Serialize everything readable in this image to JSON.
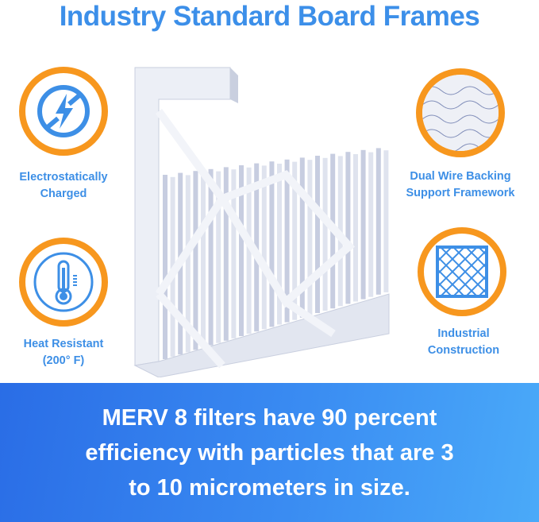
{
  "title": "Industry Standard Board Frames",
  "features": [
    {
      "icon": "no-static-electricity-icon",
      "label_line1": "Electrostatically",
      "label_line2": "Charged"
    },
    {
      "icon": "thermometer-icon",
      "label_line1": "Heat Resistant",
      "label_line2": "(200° F)"
    },
    {
      "icon": "wire-mesh-photo",
      "label_line1": "Dual Wire Backing",
      "label_line2": "Support Framework"
    },
    {
      "icon": "lattice-frame-icon",
      "label_line1": "Industrial",
      "label_line2": "Construction"
    }
  ],
  "banner": {
    "line1": "MERV 8 filters have 90 percent",
    "line2": "efficiency with particles that are 3",
    "line3": "to 10 micrometers in size."
  },
  "colors": {
    "title": "#3c8fe9",
    "ring": "#f7971e",
    "icon": "#3d8fe6",
    "banner_start": "#2a6de6",
    "banner_end": "#4aaaf9"
  }
}
